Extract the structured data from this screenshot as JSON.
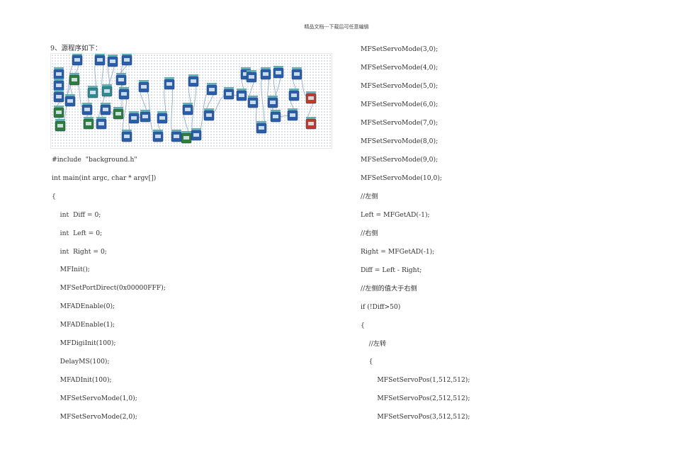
{
  "header": {
    "text": "精品文档---下载后可任意编辑"
  },
  "heading": "9、源程序如下：",
  "left_lines": [
    "#include  \"background.h\"",
    "int main(int argc, char * argv[])",
    "{",
    "    int  Diff = 0;",
    "    int  Left = 0;",
    "    int  Right = 0;",
    "    MFInit();",
    "    MFSetPortDirect(0x00000FFF);",
    "    MFADEnable(0);",
    "    MFADEnable(1);",
    "    MFDigiInit(100);",
    "    DelayMS(100);",
    "    MFADInit(100);",
    "    MFSetServoMode(1,0);",
    "    MFSetServoMode(2,0);"
  ],
  "right_lines": [
    "MFSetServoMode(3,0);",
    "MFSetServoMode(4,0);",
    "MFSetServoMode(5,0);",
    "MFSetServoMode(6,0);",
    "MFSetServoMode(7,0);",
    "MFSetServoMode(8,0);",
    "MFSetServoMode(9,0);",
    "MFSetServoMode(10,0);",
    "//左侧",
    "Left = MFGetAD(-1);",
    "//右侧",
    "Right = MFGetAD(-1);",
    "Diff = Left - Right;",
    "//左侧的值大于右侧",
    "if (!Diff>50)",
    "{",
    "    //左转",
    "    {",
    "        MFSetServoPos(1,512,512);",
    "        MFSetServoPos(2,512,512);",
    "        MFSetServoPos(3,512,512);"
  ],
  "colors": {
    "block_blue": "#2a5ea8",
    "block_green": "#2f7d3a",
    "block_teal": "#2e8c8c",
    "block_red": "#c0392b",
    "wire": "#8aa7c8",
    "text": "#333333"
  }
}
